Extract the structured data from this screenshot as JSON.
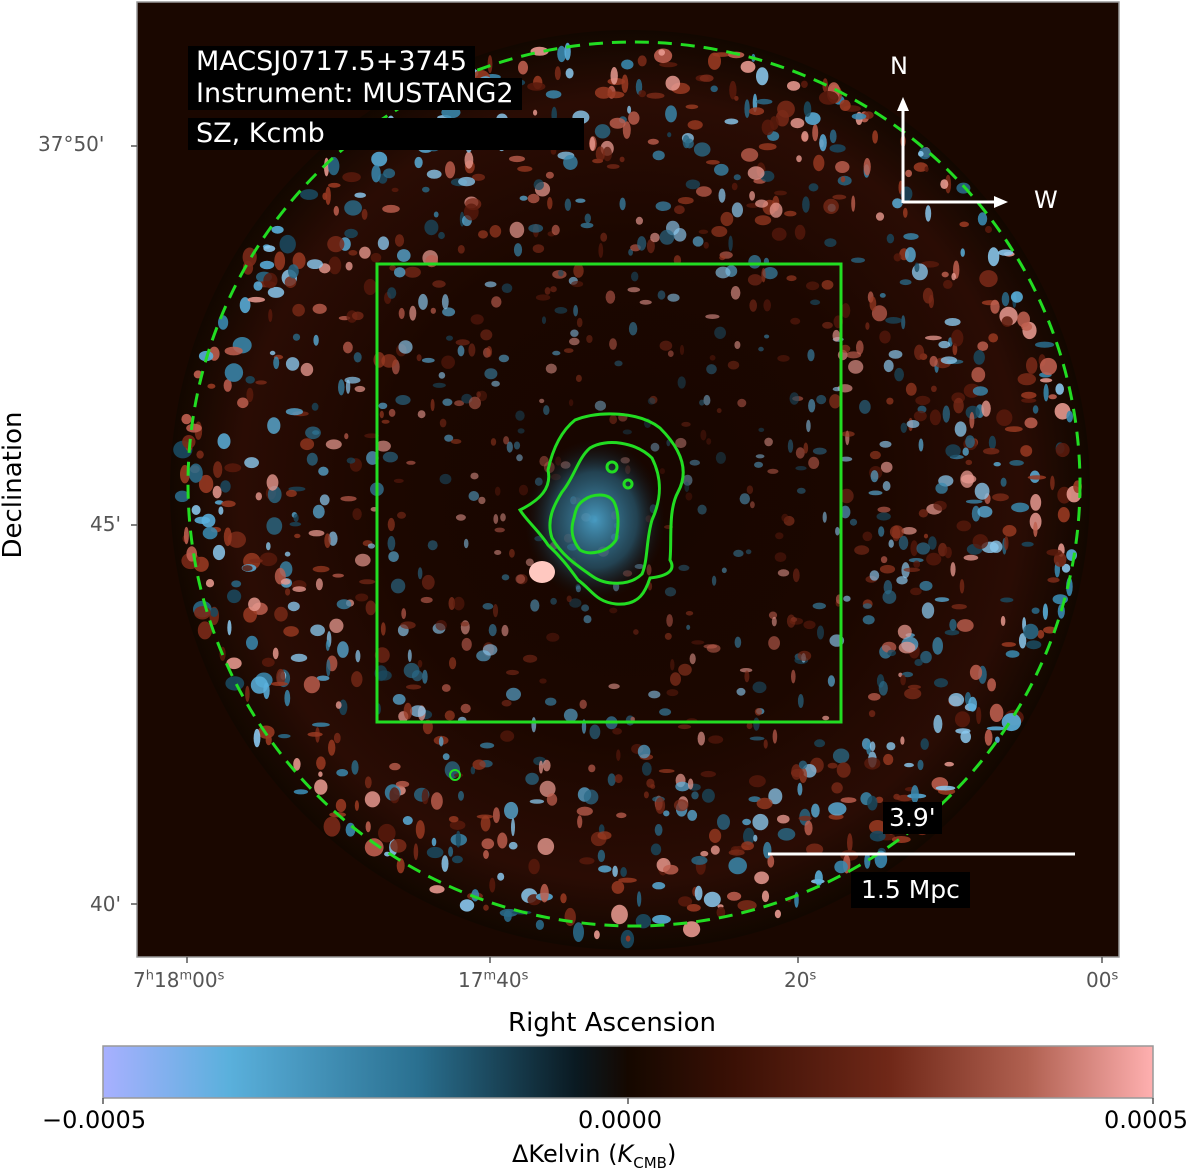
{
  "image": {
    "target": "MACSJ0717.5+3745",
    "instrument": "Instrument: MUSTANG2",
    "product": "SZ, Kcmb",
    "compass": {
      "north": "N",
      "west": "W"
    },
    "scalebar": {
      "angular": "3.9'",
      "physical": "1.5 Mpc"
    },
    "overlay_color": "#22dd22",
    "background_color": "#1a0700"
  },
  "axes": {
    "x_title": "Right Ascension",
    "y_title": "Declination",
    "x_ticks": {
      "t0": {
        "h": "7",
        "hs": "h",
        "m": "18",
        "ms": "m",
        "s": "00",
        "ss": "s"
      },
      "t1": {
        "m": "17",
        "ms": "m",
        "s": "40",
        "ss": "s"
      },
      "t2": {
        "s": "20",
        "ss": "s"
      },
      "t3": {
        "s": "00",
        "ss": "s"
      }
    },
    "y_ticks": [
      "37°50'",
      "45'",
      "40'"
    ]
  },
  "colorbar": {
    "min_label": "−0.0005",
    "mid_label": "0.0000",
    "max_label": "0.0005",
    "label_main": "ΔKelvin (",
    "label_var": "K",
    "label_sub": "CMB",
    "label_close": ")",
    "colors": [
      "#a8b0ff",
      "#5ab0dc",
      "#2a7090",
      "#0a1a22",
      "#1a0700",
      "#4a1508",
      "#8a3018",
      "#c07060",
      "#ffb0b0"
    ]
  }
}
